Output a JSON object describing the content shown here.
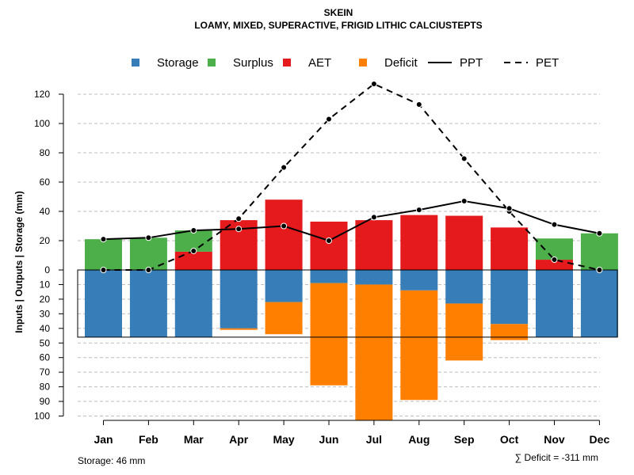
{
  "chart_data": {
    "type": "bar",
    "title": "SKEIN",
    "subtitle": "LOAMY, MIXED, SUPERACTIVE, FRIGID LITHIC CALCIUSTEPTS",
    "ylabel": "Inputs | Outputs | Storage    (mm)",
    "categories": [
      "Jan",
      "Feb",
      "Mar",
      "Apr",
      "May",
      "Jun",
      "Jul",
      "Aug",
      "Sep",
      "Oct",
      "Nov",
      "Dec"
    ],
    "upper_axis": {
      "ylim": [
        0,
        130
      ],
      "ticks": [
        0,
        20,
        40,
        60,
        80,
        100,
        120
      ]
    },
    "lower_axis": {
      "ylim": [
        0,
        100
      ],
      "ticks": [
        10,
        20,
        30,
        40,
        50,
        60,
        70,
        80,
        90,
        100
      ]
    },
    "series": [
      {
        "name": "Storage",
        "color": "#377EB8",
        "position": "below",
        "values": [
          46,
          46,
          46,
          40,
          22,
          9,
          10,
          14,
          23,
          37,
          46,
          46
        ]
      },
      {
        "name": "Deficit",
        "color": "#FF7F00",
        "position": "below",
        "values": [
          0,
          0,
          0,
          1,
          22,
          70,
          93,
          75,
          39,
          11,
          0,
          0
        ]
      },
      {
        "name": "AET",
        "color": "#E41A1C",
        "position": "above",
        "values": [
          0,
          0,
          12.5,
          34,
          48,
          33,
          34,
          37.5,
          37,
          29,
          7,
          0
        ]
      },
      {
        "name": "Surplus",
        "color": "#4DAF4A",
        "position": "above",
        "values": [
          21,
          22,
          14.5,
          0,
          0,
          0,
          0,
          0,
          0,
          0,
          14.5,
          25
        ]
      },
      {
        "name": "PPT",
        "color": "#000000",
        "style": "solid",
        "values": [
          21,
          22,
          27,
          28,
          30,
          20,
          36,
          41,
          47,
          42,
          31,
          25
        ]
      },
      {
        "name": "PET",
        "color": "#000000",
        "style": "dashed",
        "values": [
          0,
          0,
          13,
          35,
          70,
          103,
          127,
          113,
          76,
          40,
          7,
          0
        ]
      }
    ],
    "storage_capacity": 46,
    "legend": [
      "Storage",
      "Surplus",
      "AET",
      "Deficit",
      "PPT",
      "PET"
    ],
    "legend_position": "top",
    "grid": true,
    "footer_left": "Storage: 46 mm",
    "footer_right": "∑ Deficit = -311 mm"
  }
}
